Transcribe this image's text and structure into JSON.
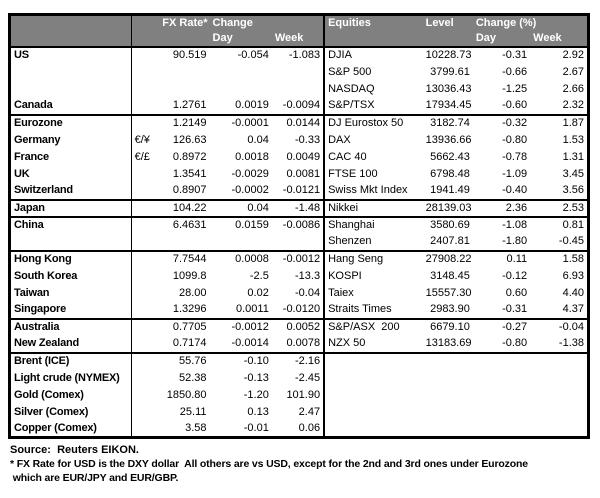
{
  "header": {
    "left": {
      "rate": "FX Rate*",
      "change": "Change",
      "day": "Day",
      "week": "Week"
    },
    "right": {
      "equities": "Equities",
      "level": "Level",
      "change": "Change (%)",
      "day": "Day",
      "week": "Week"
    }
  },
  "rows": [
    {
      "country": "US",
      "sym": "",
      "fx": "90.519",
      "day": "-0.054",
      "week": "-1.083",
      "index": "DJIA",
      "level": "10228.73",
      "iday": "-0.31",
      "iweek": "2.92",
      "group": false,
      "indent": false
    },
    {
      "country": "",
      "sym": "",
      "fx": "",
      "day": "",
      "week": "",
      "index": "S&P 500",
      "level": "3799.61",
      "iday": "-0.66",
      "iweek": "2.67",
      "group": false,
      "indent": false
    },
    {
      "country": "",
      "sym": "",
      "fx": "",
      "day": "",
      "week": "",
      "index": "NASDAQ",
      "level": "13036.43",
      "iday": "-1.25",
      "iweek": "2.66",
      "group": false,
      "indent": false
    },
    {
      "country": "Canada",
      "sym": "",
      "fx": "1.2761",
      "day": "0.0019",
      "week": "-0.0094",
      "index": "S&P/TSX",
      "level": "17934.45",
      "iday": "-0.60",
      "iweek": "2.32",
      "group": false,
      "indent": false
    },
    {
      "country": "Eurozone",
      "sym": "",
      "fx": "1.2149",
      "day": "-0.0001",
      "week": "0.0144",
      "index": "DJ Eurostox 50",
      "level": "3182.74",
      "iday": "-0.32",
      "iweek": "1.87",
      "group": true,
      "indent": false
    },
    {
      "country": "Germany",
      "sym": "€/¥",
      "fx": "126.63",
      "day": "0.04",
      "week": "-0.33",
      "index": "DAX",
      "level": "13936.66",
      "iday": "-0.80",
      "iweek": "1.53",
      "group": false,
      "indent": true
    },
    {
      "country": "France",
      "sym": "€/£",
      "fx": "0.8972",
      "day": "0.0018",
      "week": "0.0049",
      "index": "CAC 40",
      "level": "5662.43",
      "iday": "-0.78",
      "iweek": "1.31",
      "group": false,
      "indent": true
    },
    {
      "country": "UK",
      "sym": "",
      "fx": "1.3541",
      "day": "-0.0029",
      "week": "0.0081",
      "index": "FTSE 100",
      "level": "6798.48",
      "iday": "-1.09",
      "iweek": "3.45",
      "group": false,
      "indent": false
    },
    {
      "country": "Switzerland",
      "sym": "",
      "fx": "0.8907",
      "day": "-0.0002",
      "week": "-0.0121",
      "index": "Swiss Mkt Index",
      "level": "1941.49",
      "iday": "-0.40",
      "iweek": "3.56",
      "group": false,
      "indent": false
    },
    {
      "country": "Japan",
      "sym": "",
      "fx": "104.22",
      "day": "0.04",
      "week": "-1.48",
      "index": "Nikkei",
      "level": "28139.03",
      "iday": "2.36",
      "iweek": "2.53",
      "group": true,
      "indent": false
    },
    {
      "country": "China",
      "sym": "",
      "fx": "6.4631",
      "day": "0.0159",
      "week": "-0.0086",
      "index": "Shanghai",
      "level": "3580.69",
      "iday": "-1.08",
      "iweek": "0.81",
      "group": true,
      "indent": false
    },
    {
      "country": "",
      "sym": "",
      "fx": "",
      "day": "",
      "week": "",
      "index": "Shenzen",
      "level": "2407.81",
      "iday": "-1.80",
      "iweek": "-0.45",
      "group": false,
      "indent": false
    },
    {
      "country": "Hong Kong",
      "sym": "",
      "fx": "7.7544",
      "day": "0.0008",
      "week": "-0.0012",
      "index": "Hang Seng",
      "level": "27908.22",
      "iday": "0.11",
      "iweek": "1.58",
      "group": true,
      "indent": false
    },
    {
      "country": "South Korea",
      "sym": "",
      "fx": "1099.8",
      "day": "-2.5",
      "week": "-13.3",
      "index": "KOSPI",
      "level": "3148.45",
      "iday": "-0.12",
      "iweek": "6.93",
      "group": false,
      "indent": false
    },
    {
      "country": "Taiwan",
      "sym": "",
      "fx": "28.00",
      "day": "0.02",
      "week": "-0.04",
      "index": "Taiex",
      "level": "15557.30",
      "iday": "0.60",
      "iweek": "4.40",
      "group": false,
      "indent": false
    },
    {
      "country": "Singapore",
      "sym": "",
      "fx": "1.3296",
      "day": "0.0011",
      "week": "-0.0120",
      "index": "Straits Times",
      "level": "2983.90",
      "iday": "-0.31",
      "iweek": "4.37",
      "group": false,
      "indent": false
    },
    {
      "country": "Australia",
      "sym": "",
      "fx": "0.7705",
      "day": "-0.0012",
      "week": "0.0052",
      "index": "S&P/ASX  200",
      "level": "6679.10",
      "iday": "-0.27",
      "iweek": "-0.04",
      "group": true,
      "indent": false
    },
    {
      "country": "New Zealand",
      "sym": "",
      "fx": "0.7174",
      "day": "-0.0014",
      "week": "0.0078",
      "index": "NZX 50",
      "level": "13183.69",
      "iday": "-0.80",
      "iweek": "-1.38",
      "group": false,
      "indent": false
    },
    {
      "country": "Brent (ICE)",
      "sym": "",
      "fx": "55.76",
      "day": "-0.10",
      "week": "-2.16",
      "index": "",
      "level": "",
      "iday": "",
      "iweek": "",
      "group": true,
      "indent": false
    },
    {
      "country": "Light crude (NYMEX)",
      "sym": "",
      "fx": "52.38",
      "day": "-0.13",
      "week": "-2.45",
      "index": "",
      "level": "",
      "iday": "",
      "iweek": "",
      "group": false,
      "indent": false
    },
    {
      "country": "Gold (Comex)",
      "sym": "",
      "fx": "1850.80",
      "day": "-1.20",
      "week": "101.90",
      "index": "",
      "level": "",
      "iday": "",
      "iweek": "",
      "group": false,
      "indent": false
    },
    {
      "country": "Silver (Comex)",
      "sym": "",
      "fx": "25.11",
      "day": "0.13",
      "week": "2.47",
      "index": "",
      "level": "",
      "iday": "",
      "iweek": "",
      "group": false,
      "indent": false
    },
    {
      "country": "Copper (Comex)",
      "sym": "",
      "fx": "3.58",
      "day": "-0.01",
      "week": "0.06",
      "index": "",
      "level": "",
      "iday": "",
      "iweek": "",
      "group": false,
      "indent": false
    }
  ],
  "footer": {
    "source": "Source:  Reuters EIKON.",
    "note1": "* FX Rate for USD is the DXY dollar  All others are vs USD, except for the 2nd and 3rd ones under Eurozone",
    "note2": " which are EUR/JPY and EUR/GBP."
  },
  "colors": {
    "header_bg": "#808080",
    "header_text": "#ffffff",
    "border": "#000000"
  }
}
